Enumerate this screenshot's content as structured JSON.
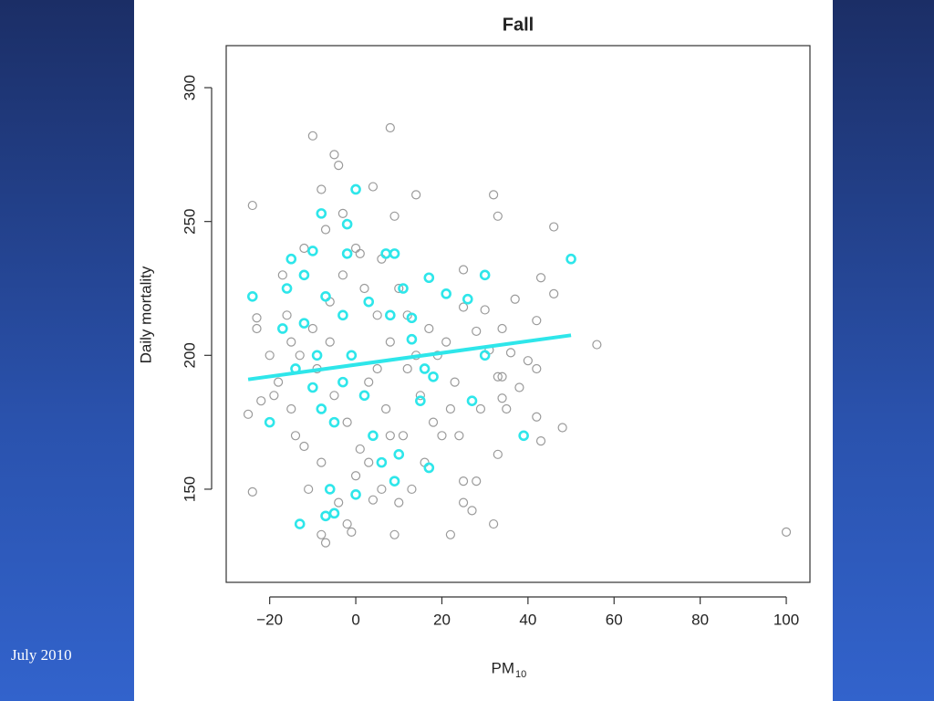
{
  "footer": "July 2010",
  "chart_data": {
    "type": "scatter",
    "title": "Fall",
    "y_label": "Daily mortality",
    "x_label": "PM",
    "x_label_subscript": "10",
    "xlim": [
      -30.1,
      105.5
    ],
    "ylim": [
      115.2,
      315.7
    ],
    "xticks": [
      {
        "value": -20,
        "label": "−20"
      },
      0,
      20,
      40,
      60,
      80,
      100
    ],
    "yticks": [
      150,
      200,
      250,
      300
    ],
    "series": [
      {
        "color": "#9a9a9a",
        "marker": "circle",
        "x": [
          -10,
          8,
          -5,
          -4,
          14,
          32,
          -24,
          -8,
          4,
          9,
          33,
          -23,
          -23,
          -22,
          -25,
          -24,
          46,
          43,
          46,
          37,
          42,
          56,
          34,
          36,
          40,
          42,
          34,
          33,
          31,
          28,
          25,
          25,
          30,
          27,
          29,
          34,
          38,
          35,
          42,
          43,
          48,
          33,
          25,
          28,
          25,
          27,
          22,
          32,
          9,
          -7,
          -8,
          -1,
          -2,
          4,
          100,
          -12,
          -15,
          -18,
          -13,
          -10,
          -6,
          -3,
          0,
          2,
          5,
          8,
          12,
          15,
          18,
          20,
          -5,
          -2,
          1,
          3,
          6,
          10,
          13,
          16,
          -8,
          -11,
          -14,
          -9,
          -6,
          -1,
          3,
          7,
          11,
          14,
          17,
          21,
          23,
          -16,
          -17,
          -12,
          -7,
          -3,
          1,
          6,
          10,
          12,
          19,
          22,
          24,
          -20,
          -19,
          -4,
          0,
          8,
          5,
          -15
        ],
        "values": [
          282,
          285,
          275,
          271,
          260,
          260,
          256,
          262,
          263,
          252,
          252,
          214,
          210,
          183,
          178,
          149,
          248,
          229,
          223,
          221,
          213,
          204,
          210,
          201,
          198,
          195,
          192,
          192,
          202,
          209,
          232,
          218,
          217,
          183,
          180,
          184,
          188,
          180,
          177,
          168,
          173,
          163,
          153,
          153,
          145,
          142,
          133,
          137,
          133,
          130,
          133,
          134,
          137,
          146,
          134,
          166,
          180,
          190,
          200,
          210,
          220,
          230,
          240,
          225,
          215,
          205,
          195,
          185,
          175,
          170,
          185,
          175,
          165,
          160,
          150,
          145,
          150,
          160,
          160,
          150,
          170,
          195,
          205,
          200,
          190,
          180,
          170,
          200,
          210,
          205,
          190,
          215,
          230,
          240,
          247,
          253,
          238,
          236,
          225,
          215,
          200,
          180,
          170,
          200,
          185,
          145,
          155,
          170,
          195,
          205
        ]
      },
      {
        "color": "#2ee6ea",
        "marker": "circle",
        "x": [
          -24,
          -20,
          -13,
          -10,
          -8,
          -2,
          0,
          -2,
          7,
          9,
          17,
          21,
          26,
          30,
          30,
          50,
          39,
          27,
          17,
          15,
          10,
          13,
          9,
          -7,
          -5,
          0,
          -6,
          -16,
          -15,
          -12,
          -14,
          -10,
          -8,
          -5,
          -3,
          -1,
          2,
          4,
          6,
          -12,
          -7,
          -3,
          3,
          8,
          13,
          11,
          -17,
          -9,
          16,
          18
        ],
        "values": [
          222,
          175,
          137,
          239,
          253,
          249,
          262,
          238,
          238,
          238,
          229,
          223,
          221,
          230,
          200,
          236,
          170,
          183,
          158,
          183,
          163,
          206,
          153,
          140,
          141,
          148,
          150,
          225,
          236,
          212,
          195,
          188,
          180,
          175,
          190,
          200,
          185,
          170,
          160,
          230,
          222,
          215,
          220,
          215,
          214,
          225,
          210,
          200,
          195,
          192
        ]
      },
      {
        "color": "#2ee6ea",
        "marker": "line",
        "x": [
          -25,
          50
        ],
        "values": [
          191,
          207.5
        ]
      }
    ]
  }
}
